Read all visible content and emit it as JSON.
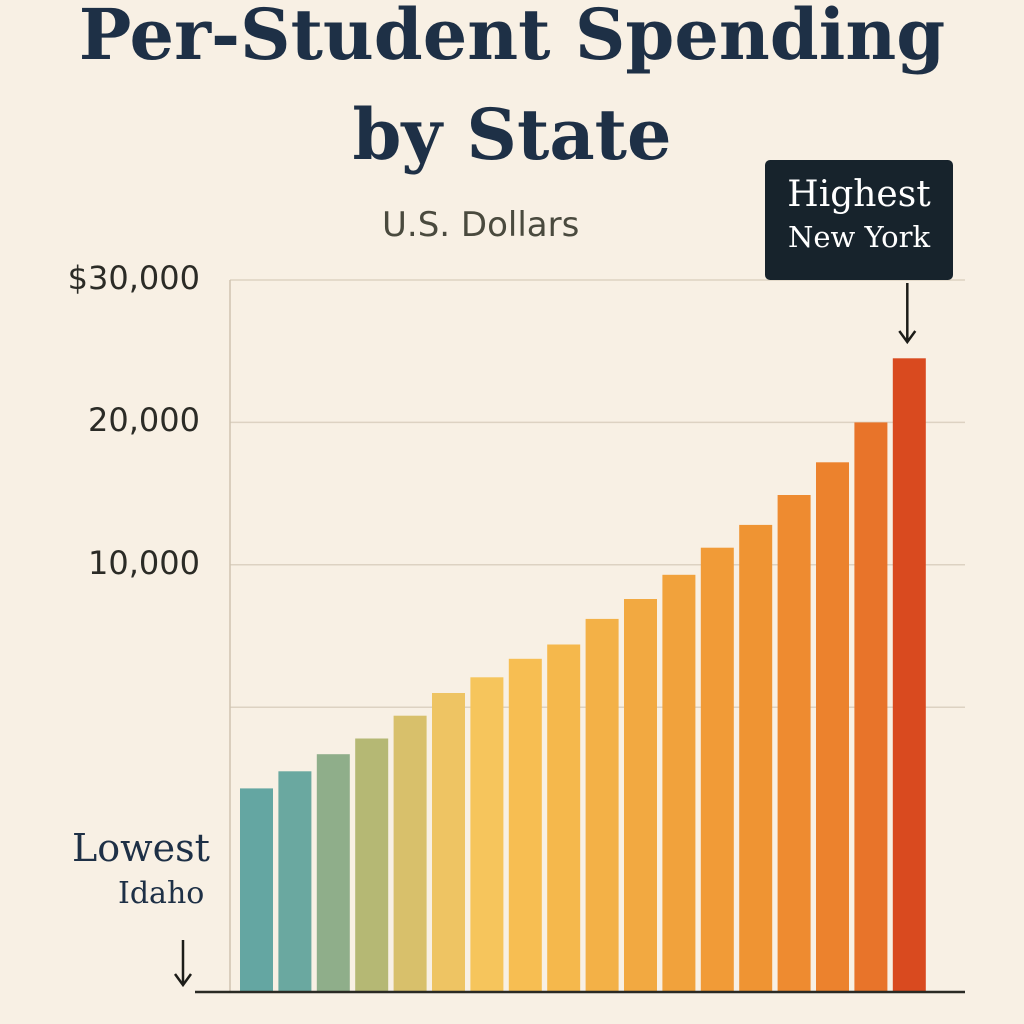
{
  "chart_data": {
    "type": "bar",
    "title_lines": [
      "Per-Student Spending",
      "by State"
    ],
    "subtitle": "U.S. Dollars",
    "ylim": [
      -20000,
      30000
    ],
    "y_ticks": [
      {
        "value": 30000,
        "label": "$30,000"
      },
      {
        "value": 20000,
        "label": "20,000"
      },
      {
        "value": 10000,
        "label": "10,000"
      },
      {
        "value": 0,
        "label": ""
      }
    ],
    "grid": true,
    "values": [
      -5700,
      -4500,
      -3300,
      -2200,
      -600,
      1000,
      2100,
      3400,
      4400,
      6200,
      7600,
      9300,
      11200,
      12800,
      14900,
      17200,
      20000,
      24500
    ],
    "colors": [
      "#64a6a2",
      "#6aa8a0",
      "#8fae8a",
      "#b5b874",
      "#d8c06b",
      "#eec463",
      "#f6c55c",
      "#f7be52",
      "#f5b84c",
      "#f3b147",
      "#f2a941",
      "#f1a23c",
      "#f19b37",
      "#ef9433",
      "#ee8b30",
      "#ec822d",
      "#e8742a",
      "#d94a1f"
    ],
    "annotations": {
      "highest": {
        "label": "Highest",
        "name": "New York"
      },
      "lowest": {
        "label": "Lowest",
        "name": "Idaho"
      }
    }
  }
}
